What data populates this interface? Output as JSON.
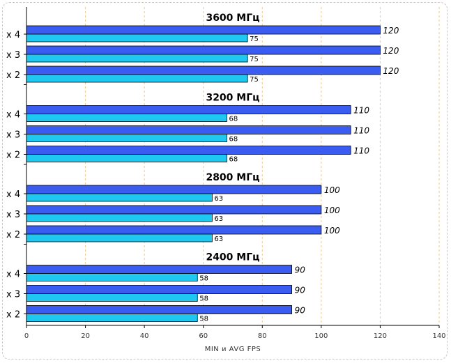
{
  "chart_data": {
    "type": "bar",
    "orientation": "horizontal",
    "xlabel": "MIN и AVG FPS",
    "xlim": [
      0,
      140
    ],
    "xticks": [
      0,
      20,
      40,
      60,
      80,
      100,
      120,
      140
    ],
    "grid": true,
    "colors": {
      "max": "#3a5cf0",
      "avg": "#1ec8f0",
      "grid": "#e8c89a"
    },
    "groups": [
      {
        "title": "3600 МГц",
        "rows": [
          {
            "label": "x 4",
            "max": 120,
            "avg": 75
          },
          {
            "label": "x 3",
            "max": 120,
            "avg": 75
          },
          {
            "label": "x 2",
            "max": 120,
            "avg": 75
          }
        ]
      },
      {
        "title": "3200 МГц",
        "rows": [
          {
            "label": "x 4",
            "max": 110,
            "avg": 68
          },
          {
            "label": "x 3",
            "max": 110,
            "avg": 68
          },
          {
            "label": "x 2",
            "max": 110,
            "avg": 68
          }
        ]
      },
      {
        "title": "2800 МГц",
        "rows": [
          {
            "label": "x 4",
            "max": 100,
            "avg": 63
          },
          {
            "label": "x 3",
            "max": 100,
            "avg": 63
          },
          {
            "label": "x 2",
            "max": 100,
            "avg": 63
          }
        ]
      },
      {
        "title": "2400 МГц",
        "rows": [
          {
            "label": "x 4",
            "max": 90,
            "avg": 58
          },
          {
            "label": "x 3",
            "max": 90,
            "avg": 58
          },
          {
            "label": "x 2",
            "max": 90,
            "avg": 58
          }
        ]
      }
    ]
  }
}
